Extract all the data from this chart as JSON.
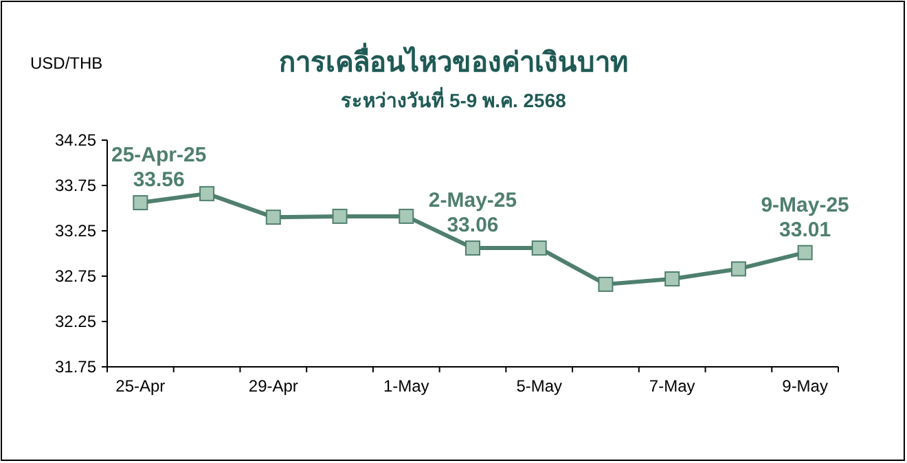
{
  "chart_data": {
    "type": "line",
    "title": "การเคลื่อนไหวของค่าเงินบาท",
    "subtitle": "ระหว่างวันที่ 5-9 พ.ค. 2568",
    "ylabel": "USD/THB",
    "categories": [
      "25-Apr",
      null,
      "29-Apr",
      null,
      "1-May",
      null,
      "5-May",
      null,
      "7-May",
      null,
      "9-May"
    ],
    "series": [
      {
        "color": "#4f7f6e",
        "values": [
          33.56,
          33.66,
          33.4,
          33.41,
          33.41,
          33.06,
          33.06,
          32.66,
          32.72,
          32.83,
          33.01
        ],
        "value_labels": [
          "25-Apr-25\n33.56",
          null,
          null,
          null,
          null,
          "2-May-25\n33.06",
          null,
          null,
          null,
          null,
          "9-May-25\n33.01"
        ]
      }
    ],
    "ylim": [
      31.75,
      34.25
    ],
    "yticks": [
      31.75,
      32.25,
      32.75,
      33.25,
      33.75,
      34.25
    ],
    "marker": "square",
    "line_style": "solid"
  }
}
